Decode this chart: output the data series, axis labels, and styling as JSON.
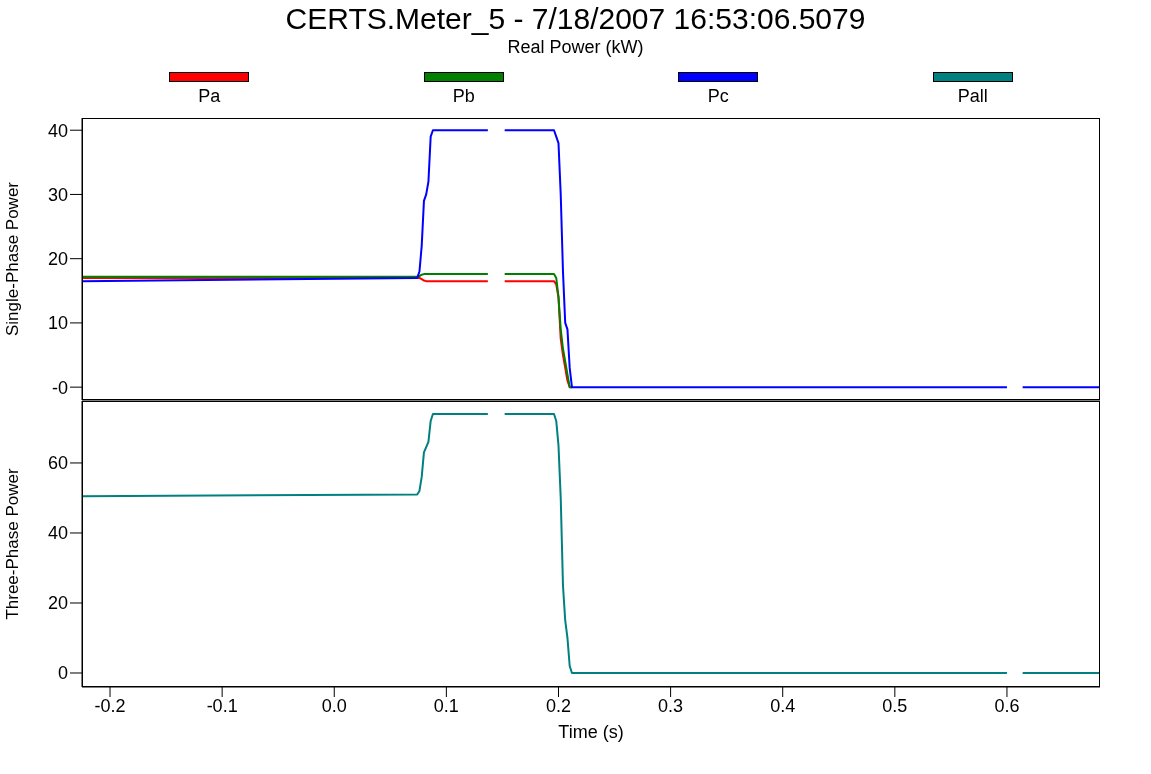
{
  "chart_data": [
    {
      "type": "line",
      "title": "CERTS.Meter_5 - 7/18/2007 16:53:06.5079",
      "subtitle": "Real Power (kW)",
      "ylabel": "Single-Phase Power",
      "legend": "top",
      "grid": false,
      "tick_labels": "y",
      "x": [
        -0.225,
        0.074,
        0.076,
        0.078,
        0.08,
        0.082,
        0.084,
        0.086,
        0.088,
        0.137,
        0.144,
        0.152,
        0.196,
        0.198,
        0.2,
        0.202,
        0.204,
        0.206,
        0.208,
        0.21,
        0.212,
        0.6,
        0.607,
        0.614,
        0.683
      ],
      "xlim": [
        -0.225,
        0.683
      ],
      "ylim": [
        -2,
        41.9
      ],
      "yticks": [
        {
          "value": 0,
          "label": "-0"
        },
        10,
        20,
        30,
        40
      ],
      "series": [
        {
          "name": "Pa",
          "color": "#ff0000",
          "values": [
            17,
            17,
            17,
            16.8,
            16.6,
            16.5,
            16.5,
            16.5,
            16.5,
            16.5,
            null,
            16.5,
            16.5,
            16,
            14,
            7.5,
            5,
            3,
            1,
            0,
            0,
            null,
            null,
            null,
            null
          ]
        },
        {
          "name": "Pb",
          "color": "#008000",
          "values": [
            17.2,
            17.2,
            17.3,
            17.5,
            17.6,
            17.6,
            17.6,
            17.6,
            17.6,
            17.6,
            null,
            17.6,
            17.6,
            17,
            14,
            9,
            6,
            4,
            2,
            0,
            0,
            null,
            null,
            null,
            null
          ]
        },
        {
          "name": "Pc",
          "color": "#0000ff",
          "values": [
            16.5,
            17,
            18,
            22,
            29,
            30,
            32,
            39,
            40,
            40,
            null,
            40,
            40,
            39,
            38,
            30,
            18,
            10,
            9,
            3,
            0,
            0,
            null,
            0,
            0
          ]
        }
      ]
    },
    {
      "type": "line",
      "ylabel": "Three-Phase Power",
      "xlabel": "Time (s)",
      "legend": "top",
      "grid": false,
      "x": [
        -0.225,
        0.074,
        0.076,
        0.078,
        0.08,
        0.082,
        0.084,
        0.086,
        0.088,
        0.137,
        0.144,
        0.152,
        0.196,
        0.198,
        0.2,
        0.202,
        0.204,
        0.206,
        0.208,
        0.21,
        0.212,
        0.6,
        0.607,
        0.614,
        0.683
      ],
      "xlim": [
        -0.225,
        0.683
      ],
      "xticks": [
        -0.2,
        -0.1,
        {
          "value": 0,
          "label": "0.0"
        },
        0.1,
        0.2,
        0.3,
        0.4,
        0.5,
        0.6
      ],
      "ylim": [
        -4,
        77.7
      ],
      "yticks": [
        0,
        20,
        40,
        60
      ],
      "series": [
        {
          "name": "Pall",
          "color": "#008080",
          "values": [
            50.5,
            51,
            52,
            56,
            63,
            64.5,
            66,
            72,
            74,
            74,
            null,
            74,
            74,
            72,
            65,
            50,
            25,
            15,
            10,
            2,
            0,
            0,
            null,
            0,
            0
          ]
        }
      ]
    }
  ]
}
